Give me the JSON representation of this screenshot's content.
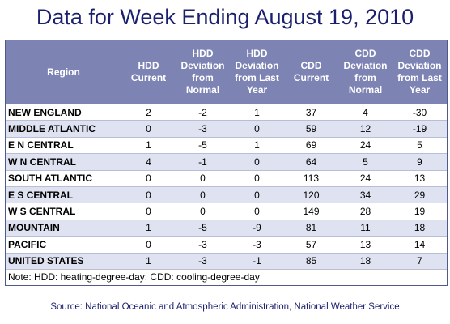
{
  "title": "Data for Week Ending August 19, 2010",
  "table": {
    "headers": [
      "Region",
      "HDD Current",
      "HDD Deviation from Normal",
      "HDD Deviation from Last Year",
      "CDD Current",
      "CDD Deviation from Normal",
      "CDD Deviation from Last Year"
    ],
    "rows": [
      [
        "NEW ENGLAND",
        "2",
        "-2",
        "1",
        "37",
        "4",
        "-30"
      ],
      [
        "MIDDLE ATLANTIC",
        "0",
        "-3",
        "0",
        "59",
        "12",
        "-19"
      ],
      [
        "E N CENTRAL",
        "1",
        "-5",
        "1",
        "69",
        "24",
        "5"
      ],
      [
        "W N CENTRAL",
        "4",
        "-1",
        "0",
        "64",
        "5",
        "9"
      ],
      [
        "SOUTH ATLANTIC",
        "0",
        "0",
        "0",
        "113",
        "24",
        "13"
      ],
      [
        "E S CENTRAL",
        "0",
        "0",
        "0",
        "120",
        "34",
        "29"
      ],
      [
        "W S CENTRAL",
        "0",
        "0",
        "0",
        "149",
        "28",
        "19"
      ],
      [
        "MOUNTAIN",
        "1",
        "-5",
        "-9",
        "81",
        "11",
        "18"
      ],
      [
        "PACIFIC",
        "0",
        "-3",
        "-3",
        "57",
        "13",
        "14"
      ],
      [
        "UNITED STATES",
        "1",
        "-3",
        "-1",
        "85",
        "18",
        "7"
      ]
    ],
    "note": "Note: HDD: heating-degree-day; CDD: cooling-degree-day"
  },
  "source": "Source:  National Oceanic and Atmospheric Administration, National Weather Service",
  "colors": {
    "title": "#1a1f6e",
    "header_bg": "#7d84b3",
    "row_stripe": "#dfe2f0"
  }
}
